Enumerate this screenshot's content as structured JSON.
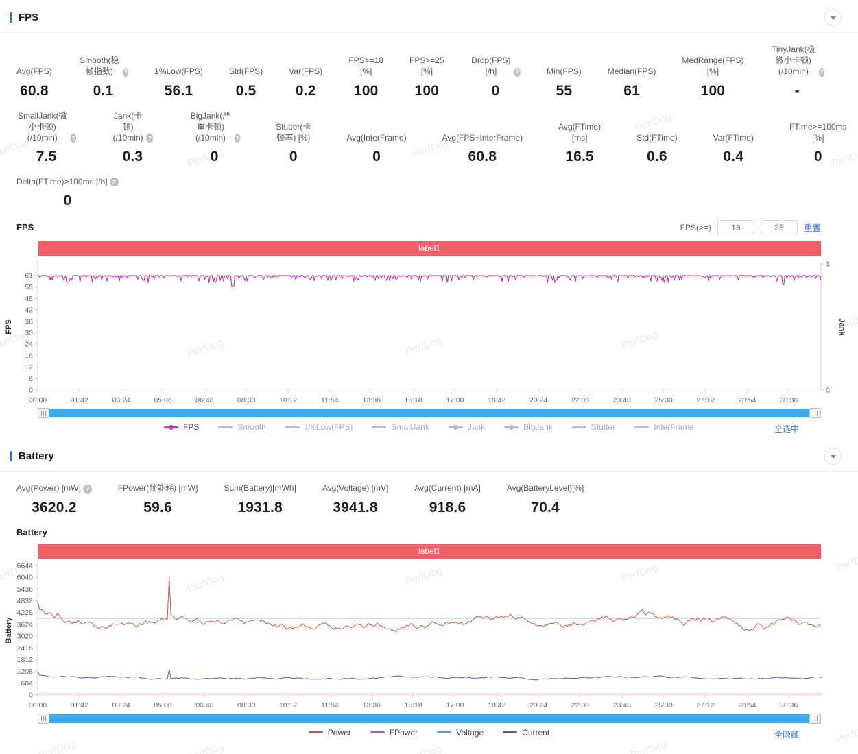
{
  "watermark_text": "PerfDog",
  "fps_section": {
    "title": "FPS",
    "chart_label": "FPS",
    "filter": {
      "label": "FPS(>=)",
      "values": [
        "18",
        "25"
      ],
      "reset": "重置"
    },
    "select_all": "全选中",
    "stats_rows": [
      [
        {
          "label": "Avg(FPS)",
          "value": "60.8"
        },
        {
          "label": "Smooth(稳帧指数)",
          "help": true,
          "value": "0.1"
        },
        {
          "label": "1%Low(FPS)",
          "value": "56.1"
        },
        {
          "label": "Std(FPS)",
          "value": "0.5"
        },
        {
          "label": "Var(FPS)",
          "value": "0.2"
        },
        {
          "label": "FPS>=18 [%]",
          "value": "100"
        },
        {
          "label": "FPS>=25 [%]",
          "value": "100"
        },
        {
          "label": "Drop(FPS) [/h]",
          "help": true,
          "value": "0"
        },
        {
          "label": "Min(FPS)",
          "value": "55"
        },
        {
          "label": "Median(FPS)",
          "value": "61"
        },
        {
          "label": "MedRange(FPS)[%]",
          "value": "100"
        },
        {
          "label": "TinyJank(极微小卡顿)\n(/10min)",
          "help": true,
          "value": "-"
        }
      ],
      [
        {
          "label": "SmallJank(微小卡顿)\n(/10min)",
          "help": true,
          "value": "7.5"
        },
        {
          "label": "Jank(卡顿)\n(/10min)",
          "help": true,
          "value": "0.3"
        },
        {
          "label": "BigJank(严重卡顿)\n(/10min)",
          "help": true,
          "value": "0"
        },
        {
          "label": "Stutter(卡顿率) [%]",
          "value": "0"
        },
        {
          "label": "Avg(InterFrame)",
          "value": "0"
        },
        {
          "label": "Avg(FPS+InterFrame)",
          "value": "60.8"
        },
        {
          "label": "Avg(FTime) [ms]",
          "value": "16.5"
        },
        {
          "label": "Std(FTime)",
          "value": "0.6"
        },
        {
          "label": "Var(FTime)",
          "value": "0.4"
        },
        {
          "label": "FTime>=100ms [%]",
          "value": "0"
        }
      ],
      [
        {
          "label": "Delta(FTime)>100ms [/h]",
          "help": true,
          "value": "0"
        }
      ]
    ]
  },
  "battery_section": {
    "title": "Battery",
    "chart_label": "Battery",
    "select_all": "全隐藏",
    "stats_rows": [
      [
        {
          "label": "Avg(Power) [mW]",
          "help": true,
          "value": "3620.2"
        },
        {
          "label": "FPower(帧能耗) [mW]",
          "value": "59.6"
        },
        {
          "label": "Sum(Battery)[mWh]",
          "value": "1931.8"
        },
        {
          "label": "Avg(Voltage) [mV]",
          "value": "3941.8"
        },
        {
          "label": "Avg(Current) [mA]",
          "value": "918.6"
        },
        {
          "label": "Avg(BatteryLevel)[%]",
          "value": "70.4"
        }
      ]
    ]
  },
  "chart_data": [
    {
      "id": "fps",
      "type": "line",
      "title": "FPS",
      "banner": "label1",
      "x_ticks": [
        "00:00",
        "01:42",
        "03:24",
        "05:06",
        "06:48",
        "08:30",
        "10:12",
        "11:54",
        "13:36",
        "15:18",
        "17:00",
        "18:42",
        "20:24",
        "22:06",
        "23:48",
        "25:30",
        "27:12",
        "28:54",
        "30:36"
      ],
      "x_span_fraction": 0.959,
      "y_axis": {
        "label": "FPS",
        "ticks": [
          0,
          6,
          12,
          18,
          24,
          30,
          36,
          42,
          48,
          55,
          61
        ],
        "max": 61
      },
      "y2_axis": {
        "label": "Jank",
        "ticks": [
          0,
          1
        ]
      },
      "series": [
        {
          "name": "FPS",
          "color": "#c03fad",
          "render": "noise",
          "base": 61,
          "noise": 1.9,
          "width": 1.2,
          "dips": [
            [
              0.038,
              57.5
            ],
            [
              0.249,
              55
            ],
            [
              0.445,
              58.5
            ],
            [
              0.662,
              58.7
            ],
            [
              0.952,
              56
            ]
          ]
        }
      ],
      "legend": [
        {
          "name": "FPS",
          "color": "#c03fad",
          "active": true,
          "dot": true
        },
        {
          "name": "Smooth",
          "active": false
        },
        {
          "name": "1%Low(FPS)",
          "active": false
        },
        {
          "name": "SmallJank",
          "active": false
        },
        {
          "name": "Jank",
          "active": false,
          "dot": true
        },
        {
          "name": "BigJank",
          "active": false,
          "dot": true
        },
        {
          "name": "Stutter",
          "active": false
        },
        {
          "name": "InterFrame",
          "active": false
        }
      ]
    },
    {
      "id": "battery",
      "type": "line",
      "title": "Battery",
      "banner": "label1",
      "x_ticks": [
        "00:00",
        "01:42",
        "03:24",
        "05:06",
        "06:48",
        "08:30",
        "10:12",
        "11:54",
        "13:36",
        "15:18",
        "17:00",
        "18:42",
        "20:24",
        "22:06",
        "23:48",
        "25:30",
        "27:12",
        "28:54",
        "30:36"
      ],
      "x_span_fraction": 0.959,
      "y_axis": {
        "label": "Battery",
        "ticks": [
          0,
          604,
          1208,
          1812,
          2416,
          3020,
          3624,
          4228,
          4832,
          5436,
          6040,
          6644
        ],
        "max": 6644
      },
      "series": [
        {
          "name": "Voltage",
          "color": "#8fc0dc",
          "render": "flat",
          "base": 3941.8,
          "width": 1
        },
        {
          "name": "FPower",
          "color": "#d27cc8",
          "render": "flat",
          "base": 59.6,
          "width": 1.2
        },
        {
          "name": "Current",
          "color": "#6253b4",
          "render": "walk",
          "base": 860,
          "start": 1208,
          "step": 62,
          "pull": 0.06,
          "min": 720,
          "max": 1010,
          "width": 1,
          "spikes": [
            [
              0.168,
              1310
            ]
          ]
        },
        {
          "name": "Power",
          "color": "#c9573f",
          "render": "walk",
          "base": 3720,
          "start": 4832,
          "step": 275,
          "pull": 0.05,
          "min": 2950,
          "max": 4380,
          "width": 1,
          "spikes": [
            [
              0.168,
              6040
            ]
          ]
        }
      ],
      "legend": [
        {
          "name": "Power",
          "color": "#c9573f",
          "active": true
        },
        {
          "name": "FPower",
          "color": "#c555ba",
          "active": true
        },
        {
          "name": "Voltage",
          "color": "#55a5da",
          "active": true
        },
        {
          "name": "Current",
          "color": "#6253b4",
          "active": true
        }
      ]
    }
  ]
}
